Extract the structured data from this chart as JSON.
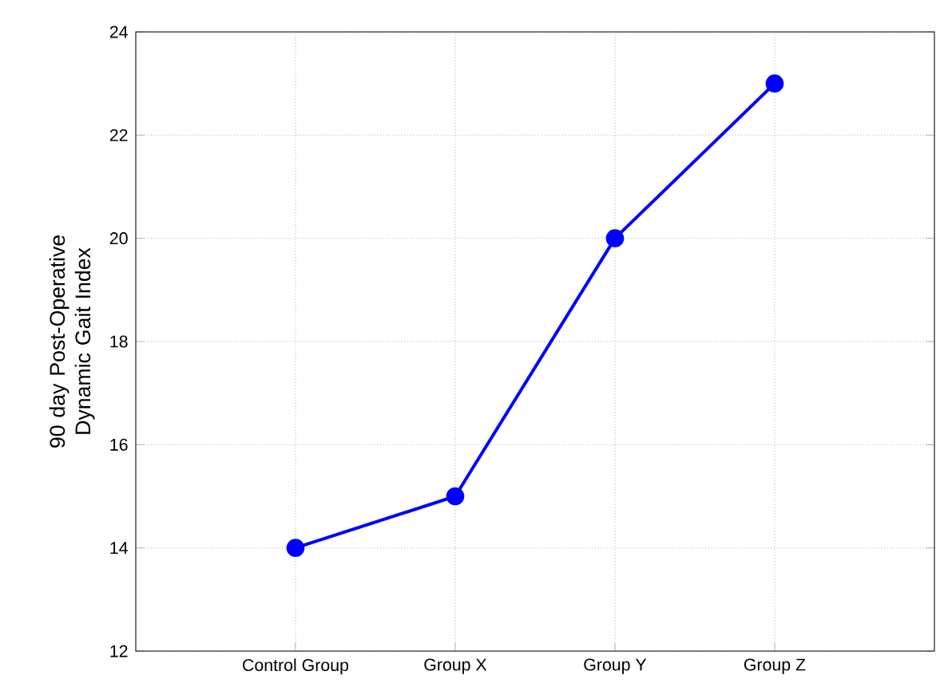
{
  "chart_data": {
    "type": "line",
    "ylabel": "90 day Post-Operative Dynamic Gait Index",
    "categories": [
      "Control Group",
      "Group X",
      "Group Y",
      "Group Z"
    ],
    "series": [
      {
        "color": "#0000ff",
        "values": [
          14,
          15,
          20,
          23
        ]
      }
    ],
    "ylim": [
      12,
      24
    ],
    "yticks": [
      12,
      14,
      16,
      18,
      20,
      22,
      24
    ],
    "grid": true,
    "marker": "circle",
    "line_style": "solid"
  }
}
